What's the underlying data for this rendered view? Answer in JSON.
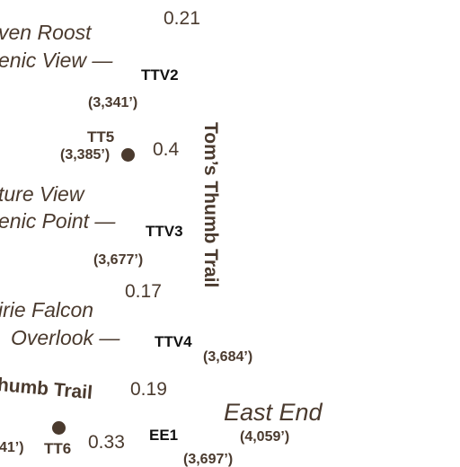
{
  "map": {
    "places": [
      {
        "key": "raven_roost",
        "text": "ven Roost"
      },
      {
        "key": "scenic_view_1",
        "text": "enic View —"
      },
      {
        "key": "future_view",
        "text": "ture View"
      },
      {
        "key": "scenic_point",
        "text": "enic Point —"
      },
      {
        "key": "prairie_falcon",
        "text": "irie Falcon"
      },
      {
        "key": "overlook",
        "text": "Overlook —"
      }
    ],
    "distances": [
      "0.21",
      "0.4",
      "0.17",
      "0.19",
      "0.33"
    ],
    "waypoints": [
      {
        "code": "TTV2",
        "elevation": "(3,341’)"
      },
      {
        "code": "TTV3",
        "elevation": "(3,677’)"
      },
      {
        "code": "TTV4",
        "elevation": "(3,684’)"
      },
      {
        "code": "EE1",
        "elevation": "(3,697’)"
      }
    ],
    "trailheads": [
      {
        "code": "TT5",
        "elevation": "(3,385’)"
      },
      {
        "code": "TT6",
        "elevation": "41’)"
      }
    ],
    "trails": {
      "vertical": "Tom’s Thumb Trail",
      "lower": "humb Trail"
    },
    "destination": {
      "name": "East End",
      "elevation": "(4,059’)"
    }
  }
}
